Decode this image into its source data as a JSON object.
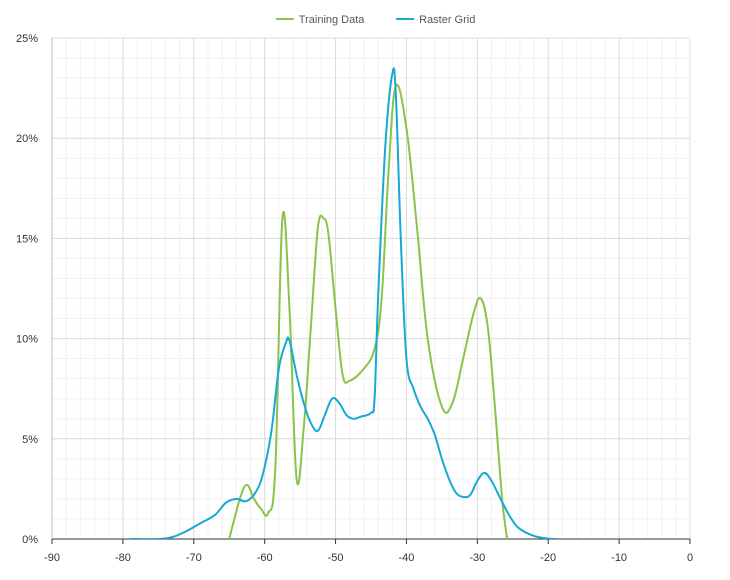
{
  "chart_data": {
    "type": "line",
    "xlim": [
      -90,
      0
    ],
    "ylim": [
      0,
      25
    ],
    "x_ticks": [
      "-90",
      "-80",
      "-70",
      "-60",
      "-50",
      "-40",
      "-30",
      "-20",
      "-10",
      "0"
    ],
    "y_ticks": [
      "0%",
      "5%",
      "10%",
      "15%",
      "20%",
      "25%"
    ],
    "grid": true,
    "legend_position": "top-center",
    "series": [
      {
        "name": "Training Data",
        "color": "#8bc34a",
        "x": [
          -65,
          -63.5,
          -62.5,
          -61.5,
          -60.5,
          -59.5,
          -58.5,
          -57.5,
          -56.5,
          -55.5,
          -54.5,
          -53.5,
          -52.5,
          -51.7,
          -51,
          -50,
          -49,
          -48,
          -46,
          -44.5,
          -43.5,
          -42.5,
          -41.5,
          -40,
          -38.5,
          -37,
          -35,
          -33.5,
          -32,
          -30.5,
          -29.5,
          -28.5,
          -27.5,
          -26.5,
          -25.8
        ],
        "y": [
          0,
          2.0,
          2.7,
          2.0,
          1.5,
          1.3,
          3.5,
          16.0,
          11.5,
          3.0,
          5.5,
          10.5,
          15.5,
          16.0,
          15.2,
          11.5,
          8.2,
          7.9,
          8.5,
          9.5,
          12.0,
          18.5,
          22.6,
          20.5,
          15.5,
          10.0,
          6.6,
          6.8,
          9.0,
          11.3,
          12.0,
          10.5,
          6.5,
          2.0,
          0
        ]
      },
      {
        "name": "Raster Grid",
        "color": "#17a9d3",
        "x": [
          -79,
          -75,
          -73,
          -71,
          -69,
          -67,
          -65.5,
          -64,
          -62.5,
          -61,
          -60,
          -59,
          -58,
          -57,
          -56.5,
          -55.5,
          -54.5,
          -53.5,
          -52.5,
          -51.5,
          -50.5,
          -49.5,
          -48.5,
          -47.5,
          -46.5,
          -45,
          -44.5,
          -44,
          -43,
          -42,
          -41.5,
          -40.8,
          -40,
          -39,
          -38,
          -37,
          -36,
          -35,
          -34,
          -33,
          -32,
          -31,
          -30,
          -29,
          -28,
          -27,
          -26,
          -25,
          -24,
          -22,
          -20,
          -19
        ],
        "y": [
          0,
          0,
          0.1,
          0.4,
          0.8,
          1.2,
          1.8,
          2.0,
          1.9,
          2.5,
          3.6,
          5.5,
          8.5,
          9.8,
          9.9,
          8.2,
          6.8,
          5.8,
          5.4,
          6.2,
          7.0,
          6.8,
          6.2,
          6.0,
          6.1,
          6.3,
          7.0,
          12.0,
          19.5,
          23.2,
          22.2,
          15.0,
          9.0,
          7.5,
          6.6,
          6.0,
          5.2,
          4.0,
          3.0,
          2.3,
          2.1,
          2.2,
          2.9,
          3.3,
          2.9,
          2.2,
          1.5,
          0.9,
          0.5,
          0.15,
          0.02,
          0
        ]
      }
    ]
  }
}
